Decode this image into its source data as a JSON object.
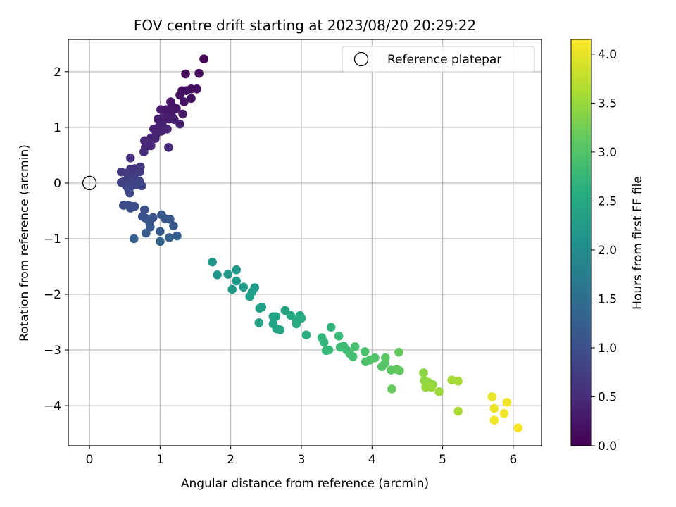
{
  "chart_data": {
    "type": "scatter",
    "title": "FOV centre drift starting at 2023/08/20 20:29:22",
    "xlabel": "Angular distance from reference (arcmin)",
    "ylabel": "Rotation from reference (arcmin)",
    "xlim": [
      -0.3,
      6.4
    ],
    "ylim": [
      -4.72,
      2.58
    ],
    "xticks": [
      0,
      1,
      2,
      3,
      4,
      5,
      6
    ],
    "yticks": [
      -4,
      -3,
      -2,
      -1,
      0,
      1,
      2
    ],
    "grid": true,
    "legend": {
      "placement": "top-right",
      "entries": [
        "Reference platepar"
      ]
    },
    "reference_point": {
      "label": "Reference platepar",
      "x": 0,
      "y": 0
    },
    "colorbar": {
      "label": "Hours from first FF file",
      "colormap": "viridis",
      "range": [
        0.0,
        4.15
      ],
      "ticks": [
        "0.0",
        "0.5",
        "1.0",
        "1.5",
        "2.0",
        "2.5",
        "3.0",
        "3.5",
        "4.0"
      ]
    },
    "series": [
      {
        "points": [
          {
            "x": 1.62,
            "y": 2.23,
            "c": 0.03
          },
          {
            "x": 1.36,
            "y": 1.96,
            "c": 0.08
          },
          {
            "x": 1.55,
            "y": 1.97,
            "c": 0.1
          },
          {
            "x": 1.44,
            "y": 1.69,
            "c": 0.12
          },
          {
            "x": 1.52,
            "y": 1.69,
            "c": 0.14
          },
          {
            "x": 1.31,
            "y": 1.66,
            "c": 0.16
          },
          {
            "x": 1.37,
            "y": 1.66,
            "c": 0.17
          },
          {
            "x": 1.28,
            "y": 1.58,
            "c": 0.19
          },
          {
            "x": 1.44,
            "y": 1.52,
            "c": 0.2
          },
          {
            "x": 1.34,
            "y": 1.46,
            "c": 0.22
          },
          {
            "x": 1.15,
            "y": 1.46,
            "c": 0.24
          },
          {
            "x": 1.18,
            "y": 1.37,
            "c": 0.26
          },
          {
            "x": 1.23,
            "y": 1.34,
            "c": 0.27
          },
          {
            "x": 1.09,
            "y": 1.32,
            "c": 0.28
          },
          {
            "x": 1.01,
            "y": 1.32,
            "c": 0.29
          },
          {
            "x": 1.32,
            "y": 1.24,
            "c": 0.3
          },
          {
            "x": 1.16,
            "y": 1.22,
            "c": 0.31
          },
          {
            "x": 1.13,
            "y": 1.15,
            "c": 0.32
          },
          {
            "x": 1.05,
            "y": 1.19,
            "c": 0.33
          },
          {
            "x": 0.97,
            "y": 1.15,
            "c": 0.34
          },
          {
            "x": 1.2,
            "y": 1.14,
            "c": 0.35
          },
          {
            "x": 1.03,
            "y": 1.06,
            "c": 0.36
          },
          {
            "x": 1.28,
            "y": 1.06,
            "c": 0.37
          },
          {
            "x": 0.99,
            "y": 1.03,
            "c": 0.38
          },
          {
            "x": 0.91,
            "y": 0.97,
            "c": 0.39
          },
          {
            "x": 1.1,
            "y": 0.97,
            "c": 0.4
          },
          {
            "x": 1.02,
            "y": 0.93,
            "c": 0.41
          },
          {
            "x": 0.95,
            "y": 0.89,
            "c": 0.42
          },
          {
            "x": 0.87,
            "y": 0.81,
            "c": 0.43
          },
          {
            "x": 0.93,
            "y": 0.8,
            "c": 0.44
          },
          {
            "x": 0.78,
            "y": 0.76,
            "c": 0.45
          },
          {
            "x": 0.84,
            "y": 0.71,
            "c": 0.46
          },
          {
            "x": 0.87,
            "y": 0.67,
            "c": 0.47
          },
          {
            "x": 0.79,
            "y": 0.64,
            "c": 0.48
          },
          {
            "x": 1.12,
            "y": 0.64,
            "c": 0.49
          },
          {
            "x": 0.77,
            "y": 0.56,
            "c": 0.5
          },
          {
            "x": 0.58,
            "y": 0.45,
            "c": 0.56
          },
          {
            "x": 0.58,
            "y": 0.25,
            "c": 0.6
          },
          {
            "x": 0.64,
            "y": 0.26,
            "c": 0.63
          },
          {
            "x": 0.72,
            "y": 0.29,
            "c": 0.66
          },
          {
            "x": 0.45,
            "y": 0.2,
            "c": 0.68
          },
          {
            "x": 0.53,
            "y": 0.18,
            "c": 0.7
          },
          {
            "x": 0.71,
            "y": 0.2,
            "c": 0.72
          },
          {
            "x": 0.58,
            "y": 0.1,
            "c": 0.74
          },
          {
            "x": 0.63,
            "y": 0.12,
            "c": 0.75
          },
          {
            "x": 0.5,
            "y": 0.04,
            "c": 0.77
          },
          {
            "x": 0.45,
            "y": 0.01,
            "c": 0.78
          },
          {
            "x": 0.62,
            "y": 0.04,
            "c": 0.8
          },
          {
            "x": 0.71,
            "y": 0.03,
            "c": 0.82
          },
          {
            "x": 0.52,
            "y": -0.05,
            "c": 0.84
          },
          {
            "x": 0.6,
            "y": -0.05,
            "c": 0.86
          },
          {
            "x": 0.67,
            "y": -0.03,
            "c": 0.87
          },
          {
            "x": 0.74,
            "y": -0.05,
            "c": 0.88
          },
          {
            "x": 0.55,
            "y": -0.1,
            "c": 0.9
          },
          {
            "x": 0.57,
            "y": -0.18,
            "c": 0.92
          },
          {
            "x": 0.48,
            "y": -0.4,
            "c": 0.94
          },
          {
            "x": 0.55,
            "y": -0.4,
            "c": 0.96
          },
          {
            "x": 0.6,
            "y": -0.42,
            "c": 0.97
          },
          {
            "x": 0.64,
            "y": -0.42,
            "c": 0.98
          },
          {
            "x": 0.58,
            "y": -0.45,
            "c": 0.99
          },
          {
            "x": 0.78,
            "y": -0.48,
            "c": 1.01
          },
          {
            "x": 0.75,
            "y": -0.6,
            "c": 1.03
          },
          {
            "x": 0.79,
            "y": -0.63,
            "c": 1.05
          },
          {
            "x": 0.9,
            "y": -0.62,
            "c": 1.06
          },
          {
            "x": 0.85,
            "y": -0.7,
            "c": 1.08
          },
          {
            "x": 1.02,
            "y": -0.57,
            "c": 1.1
          },
          {
            "x": 1.07,
            "y": -0.64,
            "c": 1.12
          },
          {
            "x": 1.14,
            "y": -0.65,
            "c": 1.14
          },
          {
            "x": 1.19,
            "y": -0.77,
            "c": 1.16
          },
          {
            "x": 0.86,
            "y": -0.79,
            "c": 1.18
          },
          {
            "x": 0.8,
            "y": -0.9,
            "c": 1.2
          },
          {
            "x": 1.0,
            "y": -0.87,
            "c": 1.22
          },
          {
            "x": 1.13,
            "y": -0.98,
            "c": 1.24
          },
          {
            "x": 1.24,
            "y": -0.95,
            "c": 1.26
          },
          {
            "x": 0.63,
            "y": -1.0,
            "c": 1.28
          },
          {
            "x": 1.0,
            "y": -1.05,
            "c": 1.3
          },
          {
            "x": 1.74,
            "y": -1.42,
            "c": 2.15
          },
          {
            "x": 1.81,
            "y": -1.65,
            "c": 2.18
          },
          {
            "x": 1.96,
            "y": -1.64,
            "c": 2.2
          },
          {
            "x": 2.08,
            "y": -1.56,
            "c": 2.22
          },
          {
            "x": 2.08,
            "y": -1.76,
            "c": 2.24
          },
          {
            "x": 2.18,
            "y": -1.87,
            "c": 2.26
          },
          {
            "x": 2.02,
            "y": -1.91,
            "c": 2.27
          },
          {
            "x": 2.34,
            "y": -1.88,
            "c": 2.28
          },
          {
            "x": 2.3,
            "y": -1.96,
            "c": 2.3
          },
          {
            "x": 2.27,
            "y": -2.04,
            "c": 2.32
          },
          {
            "x": 2.44,
            "y": -2.23,
            "c": 2.34
          },
          {
            "x": 2.41,
            "y": -2.25,
            "c": 2.35
          },
          {
            "x": 2.6,
            "y": -2.4,
            "c": 2.37
          },
          {
            "x": 2.64,
            "y": -2.4,
            "c": 2.38
          },
          {
            "x": 2.4,
            "y": -2.51,
            "c": 2.4
          },
          {
            "x": 2.6,
            "y": -2.53,
            "c": 2.41
          },
          {
            "x": 2.65,
            "y": -2.62,
            "c": 2.42
          },
          {
            "x": 2.7,
            "y": -2.64,
            "c": 2.44
          },
          {
            "x": 2.77,
            "y": -2.29,
            "c": 2.46
          },
          {
            "x": 2.85,
            "y": -2.38,
            "c": 2.47
          },
          {
            "x": 2.93,
            "y": -2.47,
            "c": 2.48
          },
          {
            "x": 2.98,
            "y": -2.38,
            "c": 2.5
          },
          {
            "x": 3.0,
            "y": -2.43,
            "c": 2.52
          },
          {
            "x": 2.93,
            "y": -2.53,
            "c": 2.54
          },
          {
            "x": 3.07,
            "y": -2.73,
            "c": 2.56
          },
          {
            "x": 3.42,
            "y": -2.59,
            "c": 2.7
          },
          {
            "x": 3.29,
            "y": -2.78,
            "c": 2.72
          },
          {
            "x": 3.32,
            "y": -2.86,
            "c": 2.74
          },
          {
            "x": 3.35,
            "y": -3.01,
            "c": 2.76
          },
          {
            "x": 3.39,
            "y": -3.0,
            "c": 2.78
          },
          {
            "x": 3.53,
            "y": -2.75,
            "c": 2.8
          },
          {
            "x": 3.55,
            "y": -2.95,
            "c": 2.82
          },
          {
            "x": 3.6,
            "y": -2.93,
            "c": 2.84
          },
          {
            "x": 3.64,
            "y": -3.0,
            "c": 2.86
          },
          {
            "x": 3.69,
            "y": -3.07,
            "c": 2.88
          },
          {
            "x": 3.73,
            "y": -3.12,
            "c": 2.9
          },
          {
            "x": 3.76,
            "y": -2.94,
            "c": 2.92
          },
          {
            "x": 3.9,
            "y": -3.03,
            "c": 2.95
          },
          {
            "x": 3.91,
            "y": -3.21,
            "c": 2.97
          },
          {
            "x": 3.97,
            "y": -3.18,
            "c": 2.99
          },
          {
            "x": 4.04,
            "y": -3.14,
            "c": 3.01
          },
          {
            "x": 4.14,
            "y": -3.3,
            "c": 3.03
          },
          {
            "x": 4.18,
            "y": -3.24,
            "c": 3.05
          },
          {
            "x": 4.19,
            "y": -3.14,
            "c": 3.07
          },
          {
            "x": 4.27,
            "y": -3.36,
            "c": 3.09
          },
          {
            "x": 4.35,
            "y": -3.35,
            "c": 3.11
          },
          {
            "x": 4.39,
            "y": -3.37,
            "c": 3.13
          },
          {
            "x": 4.38,
            "y": -3.04,
            "c": 3.15
          },
          {
            "x": 4.28,
            "y": -3.7,
            "c": 3.17
          },
          {
            "x": 4.73,
            "y": -3.41,
            "c": 3.42
          },
          {
            "x": 4.74,
            "y": -3.55,
            "c": 3.44
          },
          {
            "x": 4.8,
            "y": -3.58,
            "c": 3.46
          },
          {
            "x": 4.86,
            "y": -3.62,
            "c": 3.48
          },
          {
            "x": 4.76,
            "y": -3.67,
            "c": 3.5
          },
          {
            "x": 4.84,
            "y": -3.67,
            "c": 3.52
          },
          {
            "x": 4.95,
            "y": -3.75,
            "c": 3.54
          },
          {
            "x": 5.13,
            "y": -3.54,
            "c": 3.58
          },
          {
            "x": 5.22,
            "y": -3.56,
            "c": 3.6
          },
          {
            "x": 5.22,
            "y": -4.1,
            "c": 3.62
          },
          {
            "x": 5.7,
            "y": -3.84,
            "c": 4.02
          },
          {
            "x": 5.73,
            "y": -4.05,
            "c": 4.04
          },
          {
            "x": 5.91,
            "y": -3.94,
            "c": 4.06
          },
          {
            "x": 5.87,
            "y": -4.14,
            "c": 4.08
          },
          {
            "x": 5.73,
            "y": -4.26,
            "c": 4.1
          },
          {
            "x": 6.07,
            "y": -4.4,
            "c": 4.12
          }
        ]
      }
    ]
  }
}
